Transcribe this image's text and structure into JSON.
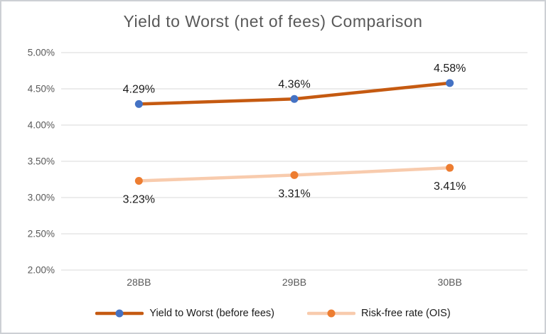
{
  "chart_data": {
    "type": "line",
    "title": "Yield to Worst (net of fees) Comparison",
    "categories": [
      "28BB",
      "29BB",
      "30BB"
    ],
    "series": [
      {
        "name": "Yield to Worst (before fees)",
        "values": [
          4.29,
          4.36,
          4.58
        ],
        "labels": [
          "4.29%",
          "4.36%",
          "4.58%"
        ],
        "line_color": "#c55a11",
        "marker_color": "#4472c4",
        "label_position": "above"
      },
      {
        "name": "Risk-free rate (OIS)",
        "values": [
          3.23,
          3.31,
          3.41
        ],
        "labels": [
          "3.23%",
          "3.31%",
          "3.41%"
        ],
        "line_color": "#f8cbad",
        "marker_color": "#ed7d31",
        "label_position": "below"
      }
    ],
    "y_axis": {
      "min": 2.0,
      "max": 5.0,
      "step": 0.5,
      "tick_labels": [
        "5.00%",
        "4.50%",
        "4.00%",
        "3.50%",
        "3.00%",
        "2.50%",
        "2.00%"
      ]
    },
    "grid": true,
    "legend_position": "bottom",
    "colors": {
      "grid": "#d9d9d9",
      "axis_text": "#595959",
      "title": "#595959",
      "data_label_text": "#1a1a1a",
      "border": "#cdd0d4",
      "background": "#ffffff"
    }
  }
}
